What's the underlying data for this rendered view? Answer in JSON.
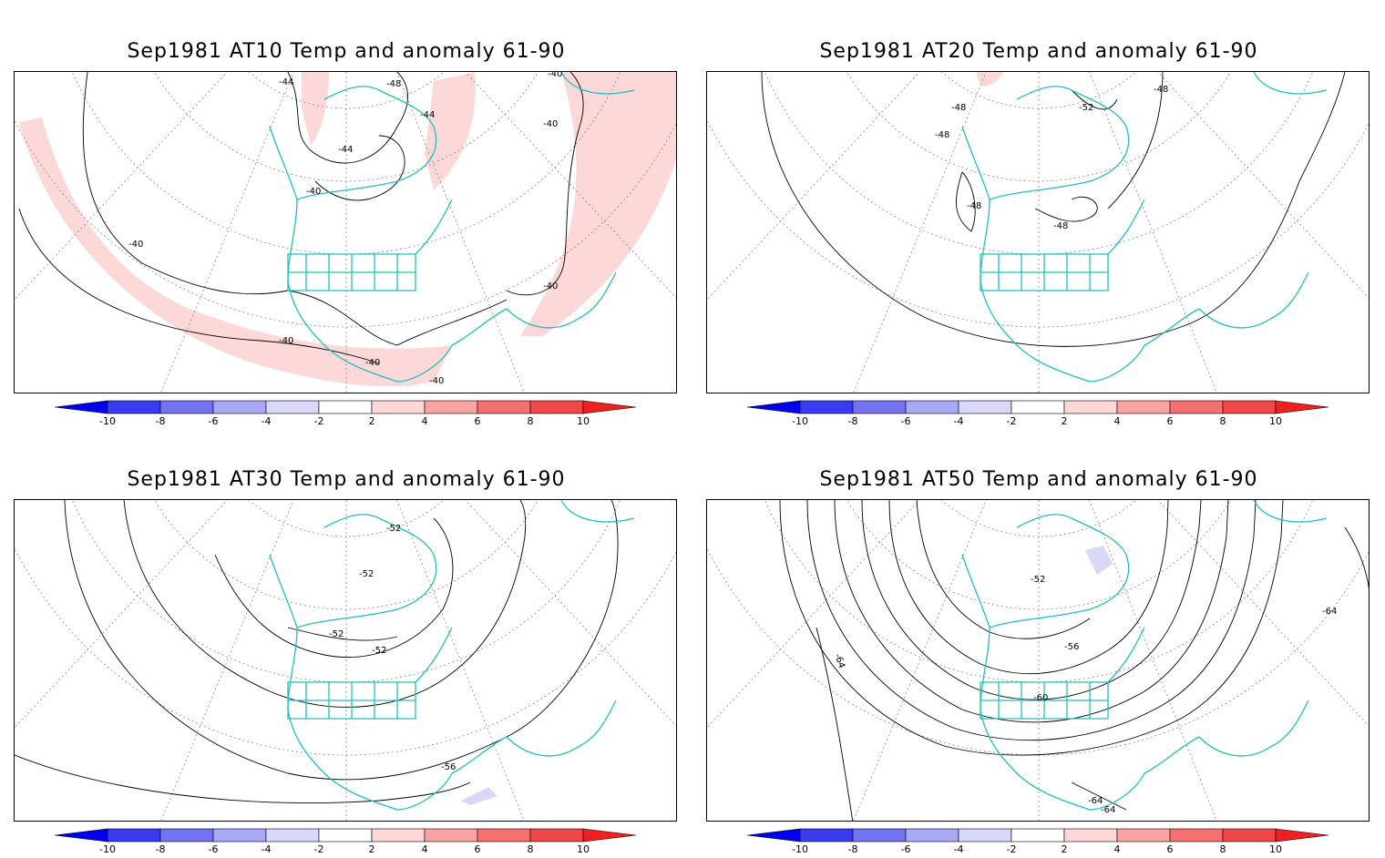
{
  "colors": {
    "coast": "#20c0c0",
    "positive_anomaly": "#fdd8d8",
    "negative_anomaly": "#d8d8f8",
    "contour": "#000000",
    "grid": "#888888"
  },
  "colorbar": {
    "tick_labels": [
      "-10",
      "-8",
      "-6",
      "-4",
      "-2",
      "2",
      "4",
      "6",
      "8",
      "10"
    ],
    "colors": [
      "#0000f0",
      "#3a3af0",
      "#7373f0",
      "#a8a8f4",
      "#d8d8fa",
      "#ffffff",
      "#fdd8d8",
      "#f9a3a3",
      "#f57070",
      "#f04848",
      "#f02020"
    ]
  },
  "panels": [
    {
      "title": "Sep1981 AT10 Temp and anomaly 61-90",
      "contour_labels": [
        "-44",
        "-48",
        "-44",
        "-44",
        "-40",
        "-40",
        "-40",
        "-40",
        "-40",
        "-40",
        "-40",
        "-40"
      ],
      "anomaly": "positive"
    },
    {
      "title": "Sep1981 AT20 Temp and anomaly 61-90",
      "contour_labels": [
        "-48",
        "-52",
        "-48",
        "-48",
        "-48",
        "-48"
      ],
      "anomaly": "positive"
    },
    {
      "title": "Sep1981 AT30 Temp and anomaly 61-90",
      "contour_labels": [
        "-52",
        "-52",
        "-52",
        "-52",
        "-56"
      ],
      "anomaly": "negative"
    },
    {
      "title": "Sep1981 AT50 Temp and anomaly 61-90",
      "contour_labels": [
        "-52",
        "-56",
        "-60",
        "-64",
        "-64",
        "-64",
        "-64"
      ],
      "anomaly": "negative"
    }
  ]
}
